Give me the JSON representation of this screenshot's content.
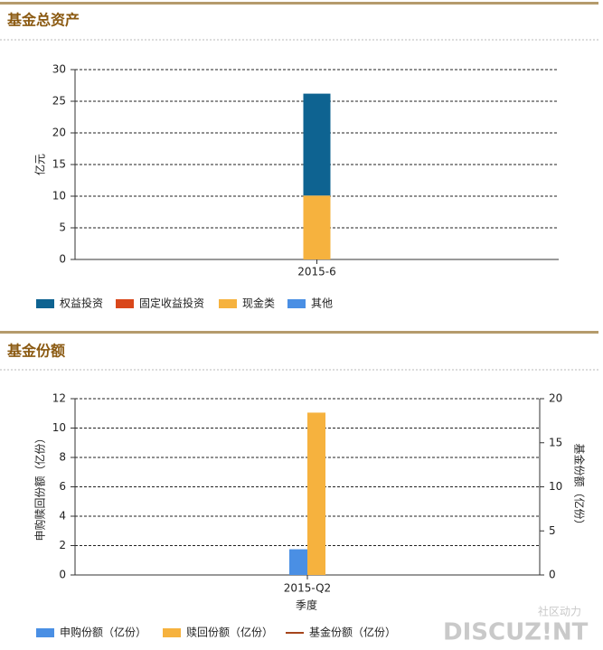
{
  "headers": [
    "基金总资产",
    "基金份额"
  ],
  "watermark": [
    "社区动力",
    "DISCUZ!NT"
  ],
  "chart_data": [
    {
      "type": "bar",
      "stacked": true,
      "ylabel": "亿元",
      "categories": [
        "2015-6"
      ],
      "series": [
        {
          "name": "权益投资",
          "color": "#0e6391",
          "values": [
            16.1
          ]
        },
        {
          "name": "固定收益投资",
          "color": "#d9471b",
          "values": [
            0
          ]
        },
        {
          "name": "现金类",
          "color": "#f6b23e",
          "values": [
            10.1
          ]
        },
        {
          "name": "其他",
          "color": "#4a8fe4",
          "values": [
            0
          ]
        }
      ],
      "ylim": [
        0,
        30
      ],
      "yticks": [
        0,
        5,
        10,
        15,
        20,
        25,
        30
      ],
      "grid": true
    },
    {
      "type": "bar",
      "stacked": false,
      "ylabel": "申购赎回份额（亿份）",
      "y2label": "基金份额（亿份）",
      "xlabel": "季度",
      "categories": [
        "2015-Q2"
      ],
      "series": [
        {
          "name": "申购份额（亿份）",
          "color": "#4a8fe4",
          "values": [
            1.75
          ]
        },
        {
          "name": "赎回份额（亿份）",
          "color": "#f6b23e",
          "values": [
            11.05
          ]
        },
        {
          "name": "基金份额（亿份）",
          "color": "#a5451c",
          "type": "line",
          "axis": "y2",
          "values": [
            null
          ]
        }
      ],
      "ylim": [
        0,
        12
      ],
      "yticks": [
        0,
        2,
        4,
        6,
        8,
        10,
        12
      ],
      "y2lim": [
        0,
        20
      ],
      "y2ticks": [
        0,
        5,
        10,
        15,
        20
      ],
      "grid": true
    }
  ]
}
